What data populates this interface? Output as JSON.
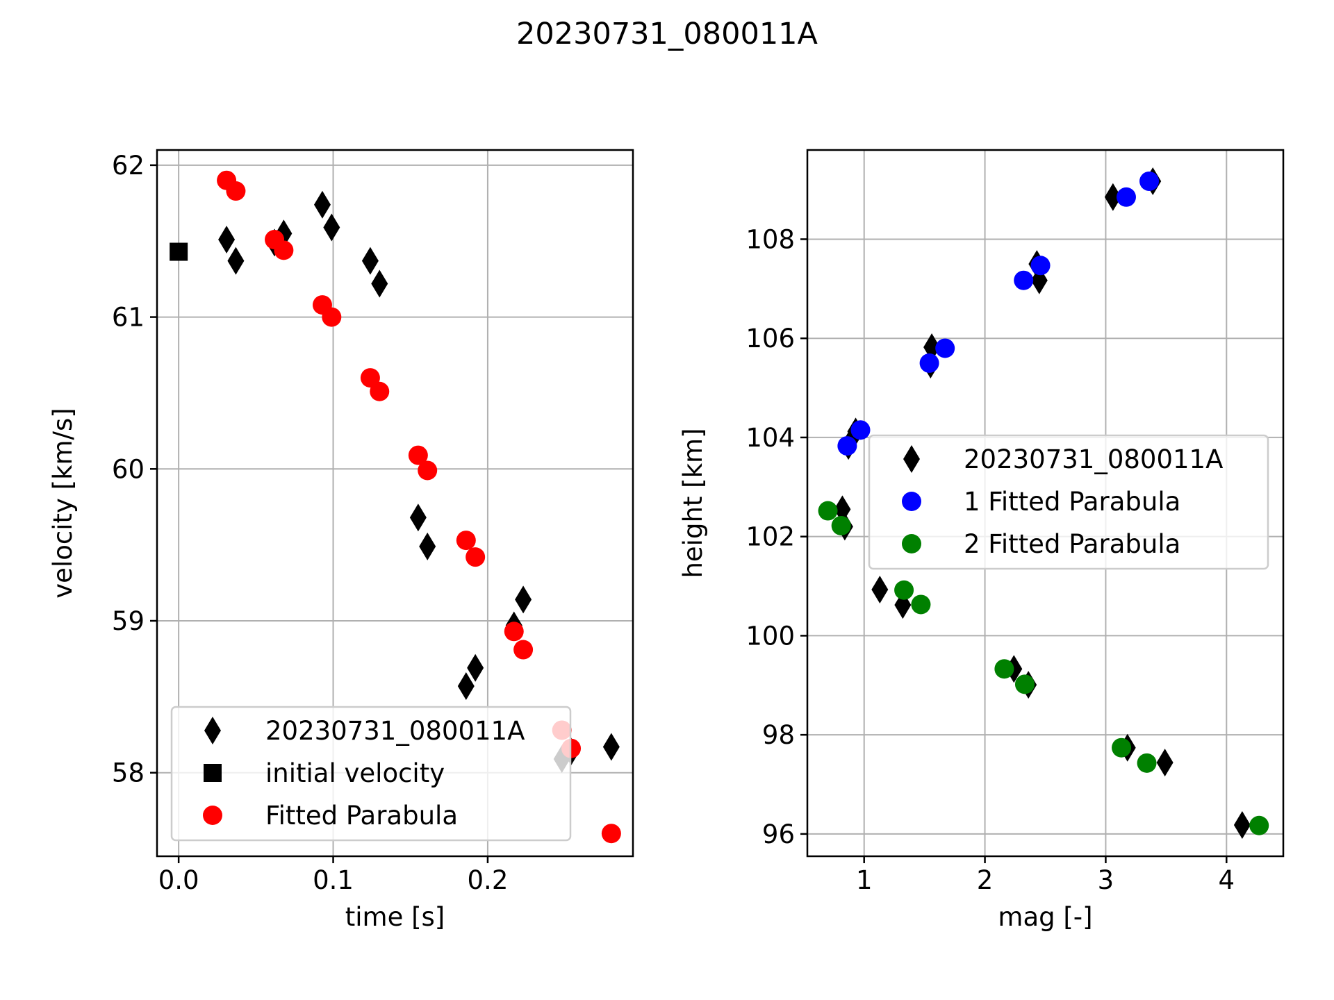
{
  "figure": {
    "suptitle": "20230731_080011A"
  },
  "chart_data": [
    {
      "type": "scatter",
      "xlabel": "time [s]",
      "ylabel": "velocity [km/s]",
      "xlim": [
        -0.014,
        0.294
      ],
      "ylim": [
        57.45,
        62.1
      ],
      "xticks": [
        0.0,
        0.1,
        0.2
      ],
      "xtick_labels": [
        "0.0",
        "0.1",
        "0.2"
      ],
      "yticks": [
        58,
        59,
        60,
        61,
        62
      ],
      "ytick_labels": [
        "58",
        "59",
        "60",
        "61",
        "62"
      ],
      "grid": true,
      "legend_position": "lower-center",
      "series": [
        {
          "name": "20230731_080011A",
          "marker": "diamond",
          "color": "#000000",
          "points": [
            [
              0.031,
              61.51
            ],
            [
              0.037,
              61.37
            ],
            [
              0.062,
              61.49
            ],
            [
              0.068,
              61.55
            ],
            [
              0.093,
              61.74
            ],
            [
              0.099,
              61.59
            ],
            [
              0.124,
              61.37
            ],
            [
              0.13,
              61.22
            ],
            [
              0.155,
              59.68
            ],
            [
              0.161,
              59.49
            ],
            [
              0.186,
              58.57
            ],
            [
              0.192,
              58.69
            ],
            [
              0.217,
              58.97
            ],
            [
              0.223,
              59.14
            ],
            [
              0.248,
              58.09
            ],
            [
              0.254,
              58.14
            ],
            [
              0.28,
              58.17
            ]
          ]
        },
        {
          "name": "initial velocity",
          "marker": "square",
          "color": "#000000",
          "points": [
            [
              0.0,
              61.43
            ]
          ]
        },
        {
          "name": "Fitted Parabula",
          "marker": "circle",
          "color": "#ff0000",
          "points": [
            [
              0.031,
              61.9
            ],
            [
              0.037,
              61.83
            ],
            [
              0.062,
              61.51
            ],
            [
              0.068,
              61.44
            ],
            [
              0.093,
              61.08
            ],
            [
              0.099,
              61.0
            ],
            [
              0.124,
              60.6
            ],
            [
              0.13,
              60.51
            ],
            [
              0.155,
              60.09
            ],
            [
              0.161,
              59.99
            ],
            [
              0.186,
              59.53
            ],
            [
              0.192,
              59.42
            ],
            [
              0.217,
              58.93
            ],
            [
              0.223,
              58.81
            ],
            [
              0.248,
              58.28
            ],
            [
              0.254,
              58.16
            ],
            [
              0.28,
              57.6
            ]
          ]
        }
      ]
    },
    {
      "type": "scatter",
      "xlabel": "mag [-]",
      "ylabel": "height [km]",
      "xlim": [
        0.53,
        4.47
      ],
      "ylim": [
        95.55,
        109.8
      ],
      "xticks": [
        1,
        2,
        3,
        4
      ],
      "xtick_labels": [
        "1",
        "2",
        "3",
        "4"
      ],
      "yticks": [
        96,
        98,
        100,
        102,
        104,
        106,
        108
      ],
      "ytick_labels": [
        "96",
        "98",
        "100",
        "102",
        "104",
        "106",
        "108"
      ],
      "grid": true,
      "legend_position": "center-right",
      "series": [
        {
          "name": "20230731_080011A",
          "marker": "diamond",
          "color": "#000000",
          "points": [
            [
              3.39,
              109.17
            ],
            [
              3.06,
              108.85
            ],
            [
              2.43,
              107.5
            ],
            [
              2.45,
              107.17
            ],
            [
              1.56,
              105.82
            ],
            [
              1.55,
              105.47
            ],
            [
              0.93,
              104.12
            ],
            [
              0.87,
              103.83
            ],
            [
              0.82,
              102.55
            ],
            [
              0.84,
              102.2
            ],
            [
              1.13,
              100.93
            ],
            [
              1.32,
              100.62
            ],
            [
              2.24,
              99.33
            ],
            [
              2.36,
              99.01
            ],
            [
              3.18,
              97.74
            ],
            [
              3.49,
              97.44
            ],
            [
              4.13,
              96.18
            ]
          ]
        },
        {
          "name": "1 Fitted Parabula",
          "marker": "circle",
          "color": "#0000ff",
          "points": [
            [
              3.36,
              109.17
            ],
            [
              3.17,
              108.85
            ],
            [
              2.46,
              107.47
            ],
            [
              2.32,
              107.17
            ],
            [
              1.67,
              105.8
            ],
            [
              1.54,
              105.5
            ],
            [
              0.97,
              104.15
            ],
            [
              0.86,
              103.83
            ]
          ]
        },
        {
          "name": "2 Fitted Parabula",
          "marker": "circle",
          "color": "#008000",
          "points": [
            [
              0.7,
              102.52
            ],
            [
              0.81,
              102.22
            ],
            [
              1.33,
              100.92
            ],
            [
              1.47,
              100.63
            ],
            [
              2.16,
              99.33
            ],
            [
              2.33,
              99.02
            ],
            [
              3.13,
              97.74
            ],
            [
              3.34,
              97.43
            ],
            [
              4.27,
              96.17
            ]
          ]
        }
      ]
    }
  ]
}
